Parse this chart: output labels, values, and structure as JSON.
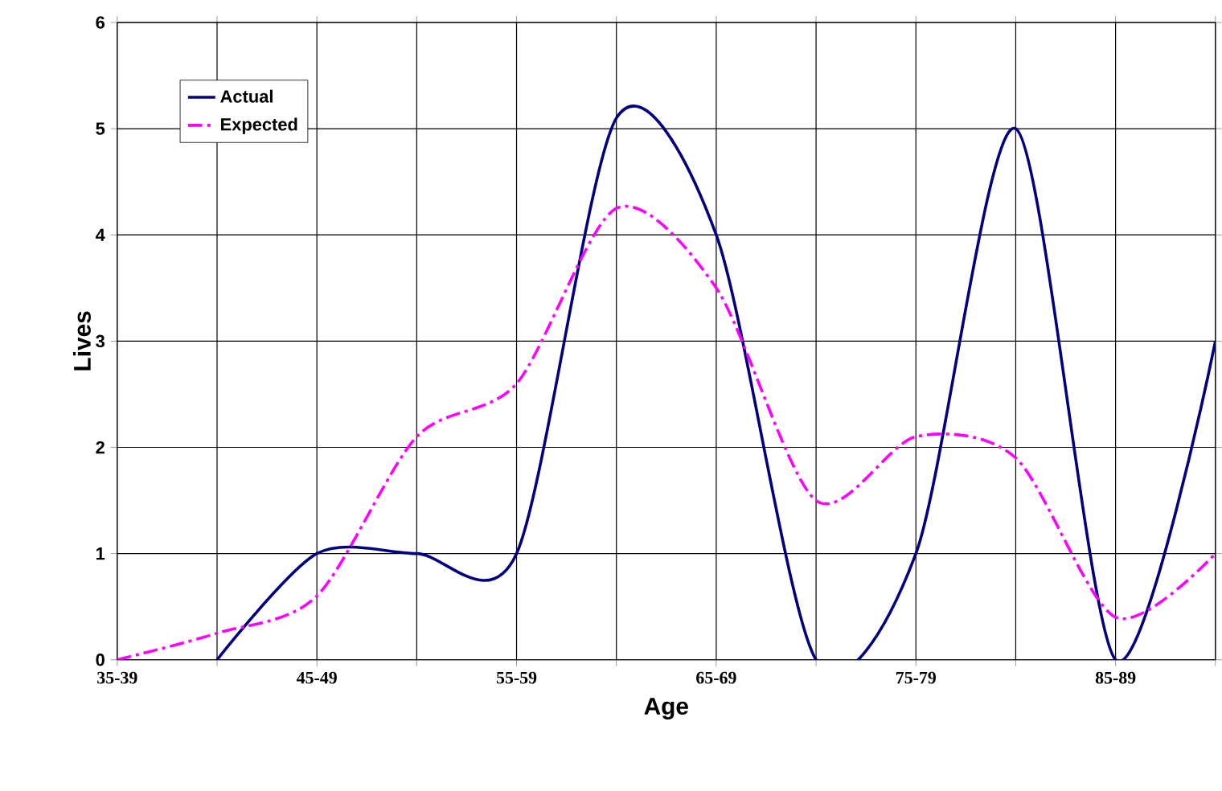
{
  "chart_data": {
    "type": "line",
    "xlabel": "Age",
    "ylabel": "Lives",
    "categories": [
      "35-39",
      null,
      "45-49",
      null,
      "55-59",
      null,
      "65-69",
      null,
      "75-79",
      null,
      "85-89",
      null
    ],
    "series": [
      {
        "name": "Actual",
        "color": "#000080",
        "line_style": "solid",
        "values": [
          null,
          0,
          1.0,
          1.0,
          1.0,
          5.1,
          4.0,
          0,
          1.0,
          5.0,
          0,
          3.0
        ]
      },
      {
        "name": "Expected",
        "color": "#ff00ff",
        "line_style": "dashdot",
        "values": [
          0,
          0.25,
          0.6,
          2.1,
          2.6,
          4.25,
          3.5,
          1.5,
          2.1,
          1.9,
          0.4,
          1.0
        ]
      }
    ],
    "ylim": [
      0,
      6
    ],
    "yticks": [
      0,
      1,
      2,
      3,
      4,
      5,
      6
    ],
    "grid": true,
    "legend": "top left",
    "marker": "none"
  }
}
